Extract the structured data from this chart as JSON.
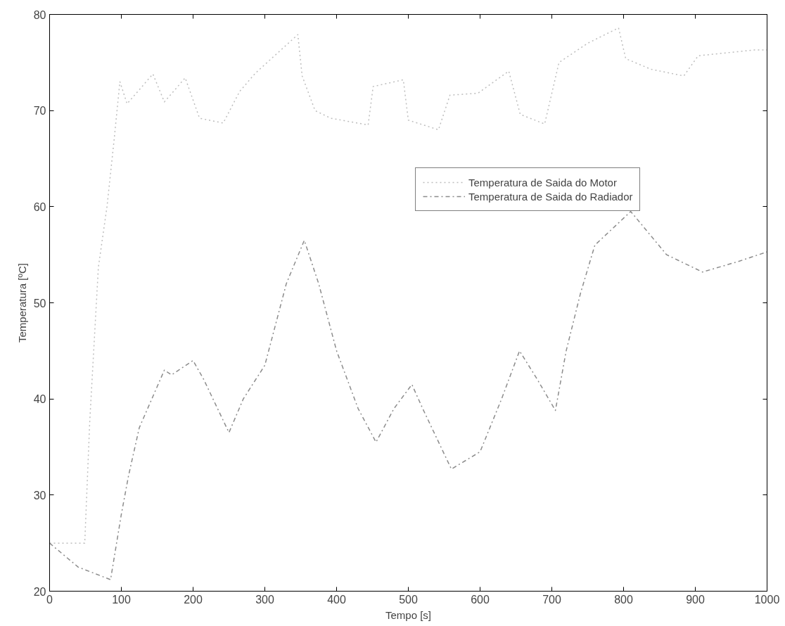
{
  "chart_data": {
    "type": "line",
    "xlabel": "Tempo [s]",
    "ylabel": "Temperatura [ºC]",
    "xlim": [
      0,
      1000
    ],
    "ylim": [
      20,
      80
    ],
    "xticks": [
      0,
      100,
      200,
      300,
      400,
      500,
      600,
      700,
      800,
      900,
      1000
    ],
    "yticks": [
      20,
      30,
      40,
      50,
      60,
      70,
      80
    ],
    "grid": false,
    "legend": "right",
    "marker": "none",
    "series": [
      {
        "name": "Temperatura de Saida do Motor",
        "color": "#bdbdbd",
        "line_style": "dotted",
        "x": [
          0,
          49,
          56,
          68,
          80,
          90,
          98,
          108,
          144,
          160,
          189,
          209,
          242,
          265,
          287,
          346,
          352,
          370,
          392,
          444,
          451,
          493,
          500,
          542,
          558,
          597,
          640,
          656,
          690,
          710,
          750,
          793,
          803,
          838,
          884,
          904,
          982,
          1000
        ],
        "values": [
          25,
          25,
          37.7,
          53.7,
          60,
          67,
          73,
          70.7,
          73.8,
          70.9,
          73.4,
          69.2,
          68.7,
          72,
          73.9,
          77.9,
          73.6,
          70,
          69.2,
          68.5,
          72.5,
          73.2,
          69,
          68,
          71.6,
          71.8,
          74.1,
          69.6,
          68.6,
          75,
          77,
          78.6,
          75.4,
          74.3,
          73.6,
          75.7,
          76.3,
          76.3
        ]
      },
      {
        "name": "Temperatura de Saida do Radiador",
        "color": "#8c8c8c",
        "line_style": "dashed",
        "x": [
          0,
          40,
          85,
          100,
          110,
          125,
          160,
          170,
          200,
          215,
          250,
          270,
          300,
          330,
          355,
          375,
          400,
          430,
          455,
          480,
          505,
          520,
          560,
          600,
          630,
          655,
          680,
          705,
          720,
          740,
          760,
          810,
          860,
          910,
          960,
          1000
        ],
        "values": [
          25,
          22.5,
          21.2,
          28,
          32,
          37,
          43,
          42.5,
          44,
          42,
          36.5,
          40,
          43.5,
          52,
          56.5,
          52,
          45,
          39,
          35.5,
          39,
          41.5,
          39,
          32.7,
          34.5,
          40,
          45,
          42,
          38.8,
          45,
          51,
          56,
          59.5,
          55,
          53.2,
          54.3,
          55.3
        ]
      }
    ]
  }
}
